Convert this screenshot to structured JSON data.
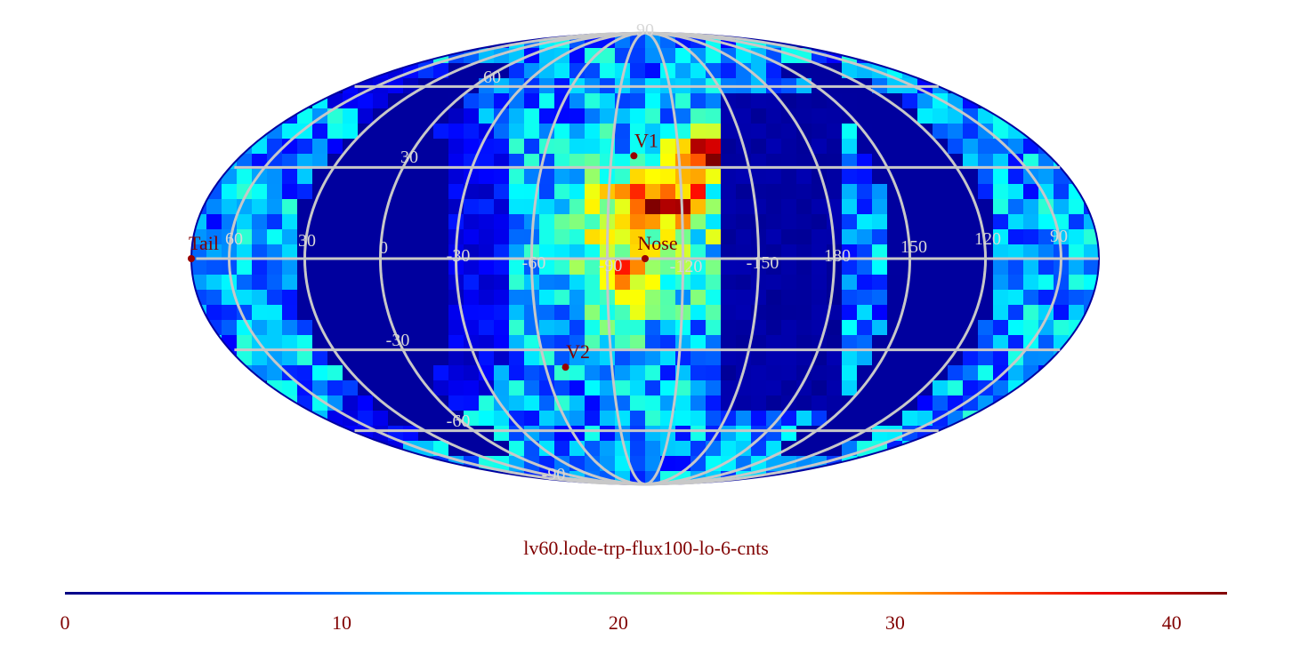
{
  "map": {
    "projection": "mollweide",
    "caption": "lv60.lode-trp-flux100-lo-6-cnts",
    "latitude_labels": [
      "90",
      "60",
      "30",
      "-30",
      "-60",
      "-90"
    ],
    "longitude_labels": [
      "60",
      "30",
      "0",
      "-30",
      "-60",
      "-90",
      "-120",
      "-150",
      "180",
      "150",
      "120",
      "90"
    ],
    "markers": [
      {
        "name": "V1",
        "lon": -100,
        "lat": 34,
        "color": "#990000"
      },
      {
        "name": "Nose",
        "lon": -105,
        "lat": 0,
        "color": "#990000"
      },
      {
        "name": "V2",
        "lon": -69,
        "lat": -36,
        "color": "#990000"
      },
      {
        "name": "Tail",
        "lon": 75,
        "lat": 0,
        "color": "#990000"
      }
    ],
    "graticule_color": "#c8c8c8",
    "background_color": "#000080"
  },
  "colorbar": {
    "min": 0,
    "max": 42,
    "tick_labels": [
      "0",
      "10",
      "20",
      "30",
      "40"
    ],
    "tick_values": [
      0,
      10,
      20,
      30,
      40
    ],
    "colormap": "jet",
    "text_color": "#800000"
  }
}
